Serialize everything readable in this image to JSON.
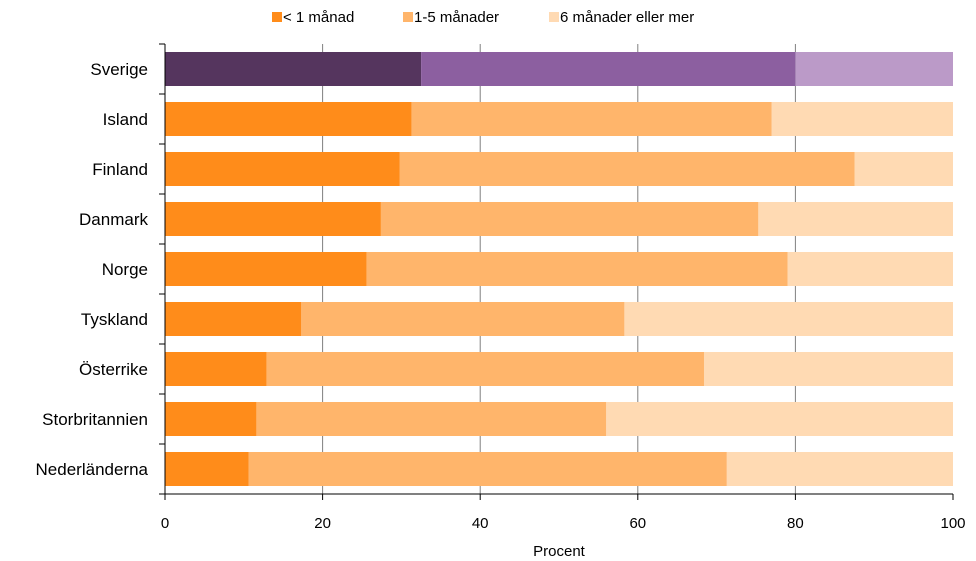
{
  "chart_data": {
    "type": "bar",
    "orientation": "horizontal",
    "stacked": true,
    "title": "",
    "xlabel": "Procent",
    "ylabel": "",
    "xlim": [
      0,
      100
    ],
    "xticks": [
      0,
      20,
      40,
      60,
      80,
      100
    ],
    "grid": "vertical",
    "legend": "top-center",
    "categories": [
      "Sverige",
      "Island",
      "Finland",
      "Danmark",
      "Norge",
      "Tyskland",
      "Österrike",
      "Storbritannien",
      "Nederländerna"
    ],
    "series": [
      {
        "name": "< 1 månad",
        "color": "#FF8C1A",
        "values": [
          32.5,
          31.3,
          29.8,
          27.4,
          25.6,
          17.3,
          12.9,
          11.6,
          10.6
        ]
      },
      {
        "name": "1-5 månader",
        "color": "#FFB56B",
        "values": [
          47.5,
          45.7,
          57.7,
          47.9,
          53.4,
          41.0,
          55.5,
          44.4,
          60.7
        ]
      },
      {
        "name": "6 månader eller mer",
        "color": "#FFDAB3",
        "values": [
          20.0,
          23.0,
          12.5,
          24.7,
          21.0,
          41.7,
          31.6,
          44.0,
          28.7
        ]
      }
    ],
    "highlight": {
      "category": "Sverige",
      "colors": [
        "#55355E",
        "#8C5FA0",
        "#BB9AC8"
      ]
    }
  }
}
